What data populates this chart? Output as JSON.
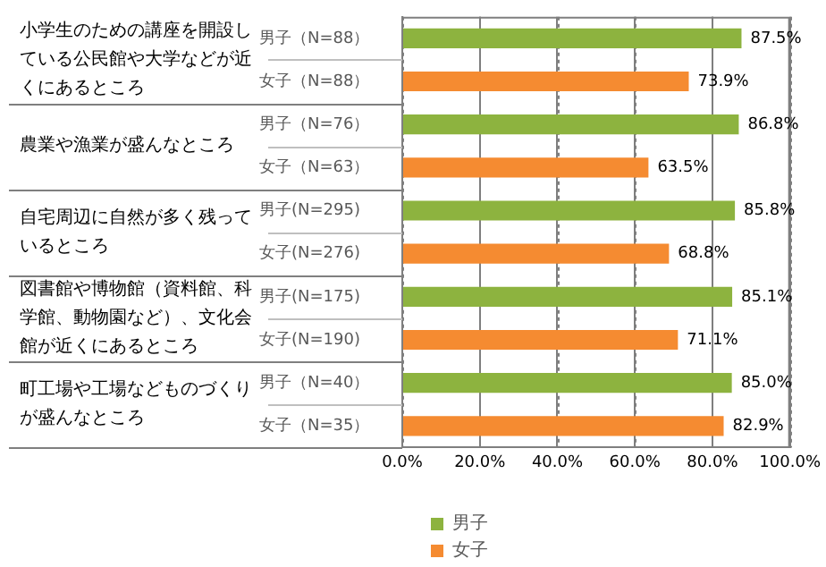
{
  "chart_data": {
    "type": "bar",
    "orientation": "horizontal",
    "categories": [
      "男子（N=88）",
      "女子（N=88）",
      "男子（N=76）",
      "女子（N=63）",
      "男子(N=295)",
      "女子(N=276)",
      "男子(N=175)",
      "女子(N=190)",
      "男子（N=40）",
      "女子（N=35）"
    ],
    "series": [
      {
        "name": "男子",
        "color": "#8db33f",
        "values": [
          87.5,
          null,
          86.8,
          null,
          85.8,
          null,
          85.1,
          null,
          85.0,
          null
        ],
        "value_labels": [
          "87.5%",
          null,
          "86.8%",
          null,
          "85.8%",
          null,
          "85.1%",
          null,
          "85.0%",
          null
        ]
      },
      {
        "name": "女子",
        "color": "#f58b31",
        "values": [
          null,
          73.9,
          null,
          63.5,
          null,
          68.8,
          null,
          71.1,
          null,
          82.9
        ],
        "value_labels": [
          null,
          "73.9%",
          null,
          "63.5%",
          null,
          "68.8%",
          null,
          "71.1%",
          null,
          "82.9%"
        ]
      }
    ],
    "annotations": [
      "小学生のための講座を開設している公民館や大学などが近くにあるところ",
      "農業や漁業が盛んなところ",
      "自宅周辺に自然が多く残っているところ",
      "図書館や博物館（資料館、科学館、動物園など）、文化会館が近くにあるところ",
      "町工場や工場などものづくりが盛んなところ"
    ],
    "xlim": [
      0,
      100
    ],
    "xticks": [
      {
        "value": 0,
        "label": "0.0%"
      },
      {
        "value": 20,
        "label": "20.0%"
      },
      {
        "value": 40,
        "label": "40.0%"
      },
      {
        "value": 60,
        "label": "60.0%"
      },
      {
        "value": 80,
        "label": "80.0%"
      },
      {
        "value": 100,
        "label": "100.0%"
      }
    ],
    "grid": "x",
    "legend": "bottom"
  }
}
